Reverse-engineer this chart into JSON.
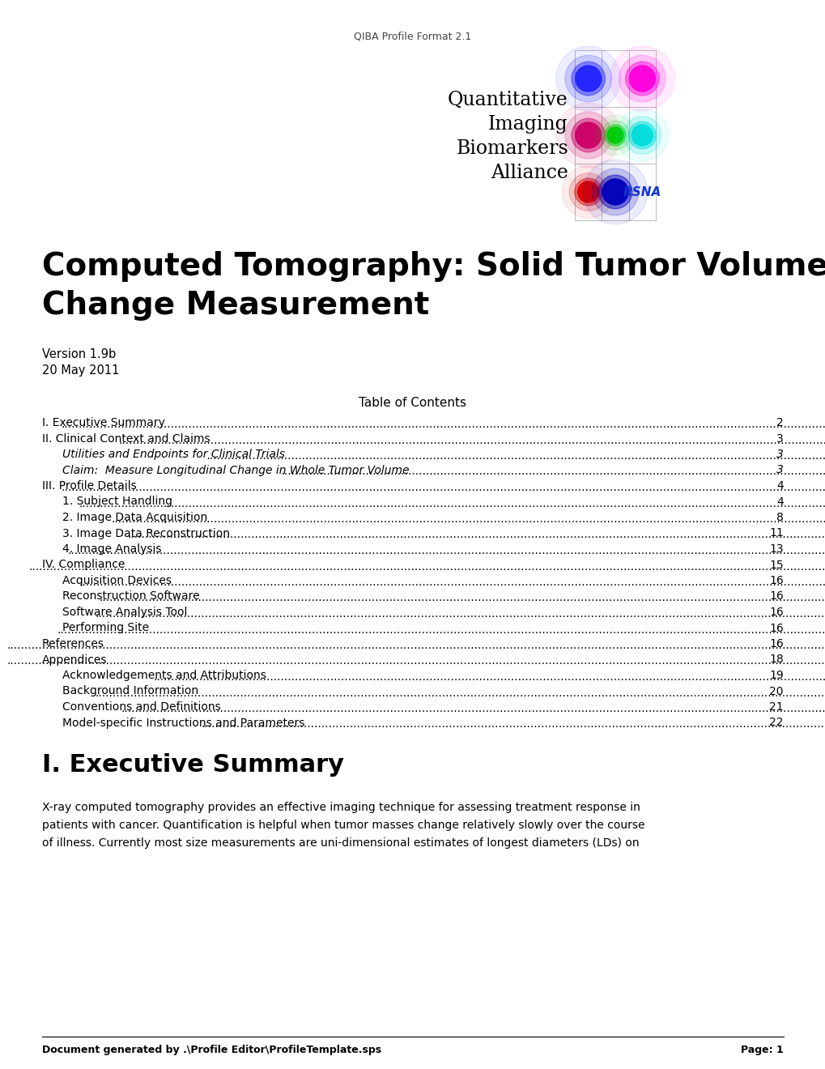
{
  "header_text": "QIBA Profile Format 2.1",
  "title_line1": "Computed Tomography: Solid Tumor Volume",
  "title_line2": "Change Measurement",
  "version": "Version 1.9b",
  "date": "20 May 2011",
  "toc_header": "Table of Contents",
  "toc_entries": [
    {
      "label": "I. Executive Summary",
      "page": "2",
      "indent": 0,
      "italic": false
    },
    {
      "label": "II. Clinical Context and Claims",
      "page": "3",
      "indent": 0,
      "italic": false
    },
    {
      "label": "Utilities and Endpoints for Clinical Trials",
      "page": "3",
      "indent": 1,
      "italic": true
    },
    {
      "label": "Claim:  Measure Longitudinal Change in Whole Tumor Volume",
      "page": "3",
      "indent": 1,
      "italic": true
    },
    {
      "label": "III. Profile Details",
      "page": "4",
      "indent": 0,
      "italic": false
    },
    {
      "label": "1. Subject Handling",
      "page": "4",
      "indent": 1,
      "italic": false
    },
    {
      "label": "2. Image Data Acquisition",
      "page": "8",
      "indent": 1,
      "italic": false
    },
    {
      "label": "3. Image Data Reconstruction",
      "page": "11",
      "indent": 1,
      "italic": false
    },
    {
      "label": "4. Image Analysis",
      "page": "13",
      "indent": 1,
      "italic": false
    },
    {
      "label": "IV. Compliance",
      "page": "15",
      "indent": 0,
      "italic": false
    },
    {
      "label": "Acquisition Devices",
      "page": "16",
      "indent": 1,
      "italic": false
    },
    {
      "label": "Reconstruction Software",
      "page": "16",
      "indent": 1,
      "italic": false
    },
    {
      "label": "Software Analysis Tool",
      "page": "16",
      "indent": 1,
      "italic": false
    },
    {
      "label": "Performing Site",
      "page": "16",
      "indent": 1,
      "italic": false
    },
    {
      "label": "References",
      "page": "16",
      "indent": 0,
      "italic": false
    },
    {
      "label": "Appendices",
      "page": "18",
      "indent": 0,
      "italic": false
    },
    {
      "label": "Acknowledgements and Attributions",
      "page": "19",
      "indent": 1,
      "italic": false
    },
    {
      "label": "Background Information",
      "page": "20",
      "indent": 1,
      "italic": false
    },
    {
      "label": "Conventions and Definitions",
      "page": "21",
      "indent": 1,
      "italic": false
    },
    {
      "label": "Model-specific Instructions and Parameters",
      "page": "22",
      "indent": 1,
      "italic": false
    }
  ],
  "section_header": "I. Executive Summary",
  "body_line1": "X-ray computed tomography provides an effective imaging technique for assessing treatment response in",
  "body_line2": "patients with cancer. Quantification is helpful when tumor masses change relatively slowly over the course",
  "body_line3": "of illness. Currently most size measurements are uni-dimensional estimates of longest diameters (LDs) on",
  "footer_left": "Document generated by .\\Profile Editor\\ProfileTemplate.sps",
  "footer_right": "Page: 1",
  "bg_color": "#ffffff",
  "text_color": "#000000"
}
